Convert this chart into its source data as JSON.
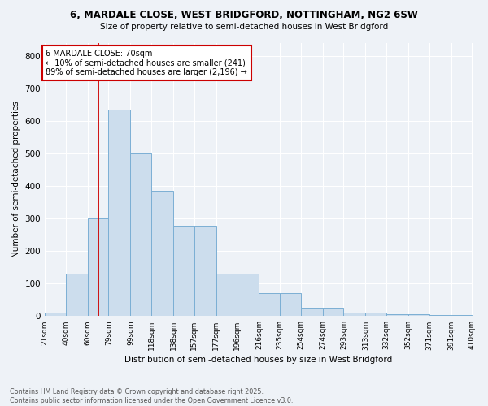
{
  "title1": "6, MARDALE CLOSE, WEST BRIDGFORD, NOTTINGHAM, NG2 6SW",
  "title2": "Size of property relative to semi-detached houses in West Bridgford",
  "xlabel": "Distribution of semi-detached houses by size in West Bridgford",
  "ylabel": "Number of semi-detached properties",
  "footer1": "Contains HM Land Registry data © Crown copyright and database right 2025.",
  "footer2": "Contains public sector information licensed under the Open Government Licence v3.0.",
  "bar_labels": [
    "21sqm",
    "40sqm",
    "60sqm",
    "79sqm",
    "99sqm",
    "118sqm",
    "138sqm",
    "157sqm",
    "177sqm",
    "196sqm",
    "216sqm",
    "235sqm",
    "254sqm",
    "274sqm",
    "293sqm",
    "313sqm",
    "332sqm",
    "352sqm",
    "371sqm",
    "391sqm",
    "410sqm"
  ],
  "bar_values": [
    10,
    130,
    300,
    635,
    500,
    385,
    278,
    278,
    130,
    130,
    70,
    70,
    25,
    25,
    12,
    12,
    7,
    7,
    3,
    3,
    0
  ],
  "bar_color": "#ccdded",
  "bar_edge_color": "#7bafd4",
  "property_line_x": 70,
  "annotation_title": "6 MARDALE CLOSE: 70sqm",
  "annotation_line1": "← 10% of semi-detached houses are smaller (241)",
  "annotation_line2": "89% of semi-detached houses are larger (2,196) →",
  "annotation_box_color": "#ffffff",
  "annotation_box_edge_color": "#cc0000",
  "vline_color": "#cc0000",
  "background_color": "#eef2f7",
  "ylim": [
    0,
    840
  ],
  "yticks": [
    0,
    100,
    200,
    300,
    400,
    500,
    600,
    700,
    800
  ]
}
